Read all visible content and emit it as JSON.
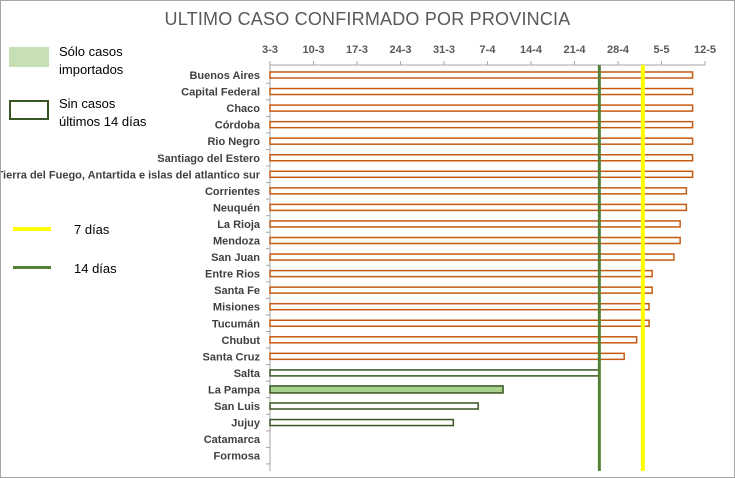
{
  "chart_data": {
    "type": "bar",
    "title": "ULTIMO CASO CONFIRMADO POR PROVINCIA",
    "x_tick_labels": [
      "3-3",
      "10-3",
      "17-3",
      "24-3",
      "31-3",
      "7-4",
      "14-4",
      "21-4",
      "28-4",
      "5-5",
      "12-5"
    ],
    "x_range_days": [
      0,
      70
    ],
    "reference_lines": [
      {
        "label": "7 días",
        "x_day": 60,
        "color": "#ffff00"
      },
      {
        "label": "14 días",
        "x_day": 53,
        "color": "#548235"
      }
    ],
    "categories": [
      "Buenos Aires",
      "Capital Federal",
      "Chaco",
      "Córdoba",
      "Rio Negro",
      "Santiago del Estero",
      "Tierra del Fuego, Antartida e islas del atlantico sur",
      "Corrientes",
      "Neuquén",
      "La Rioja",
      "Mendoza",
      "San Juan",
      "Entre Rios",
      "Santa Fe",
      "Misiones",
      "Tucumán",
      "Chubut",
      "Santa Cruz",
      "Salta",
      "La Pampa",
      "San Luis",
      "Jujuy",
      "Catamarca",
      "Formosa"
    ],
    "values_days_since_3_3": [
      68,
      68,
      68,
      68,
      68,
      68,
      68,
      67,
      67,
      66,
      66,
      65,
      61.5,
      61.5,
      61,
      61,
      59,
      57,
      53,
      37.5,
      33.5,
      29.5,
      null,
      null
    ],
    "series_style": [
      "recent",
      "recent",
      "recent",
      "recent",
      "recent",
      "recent",
      "recent",
      "recent",
      "recent",
      "recent",
      "recent",
      "recent",
      "recent",
      "recent",
      "recent",
      "recent",
      "recent",
      "recent",
      "none_14",
      "imported",
      "none_14",
      "none_14",
      "none",
      "none"
    ],
    "colors": {
      "recent_bar": "#c55a11",
      "imported_fill": "#a9d18e",
      "none_14_outline": "#375623",
      "grid": "#a6a6a6",
      "title": "#595959"
    }
  },
  "legend": {
    "imported_label": "Sólo casos importados",
    "no_cases_14_label": "Sin casos últimos 14 días",
    "seven_days_label": "7 días",
    "fourteen_days_label": "14 días"
  }
}
